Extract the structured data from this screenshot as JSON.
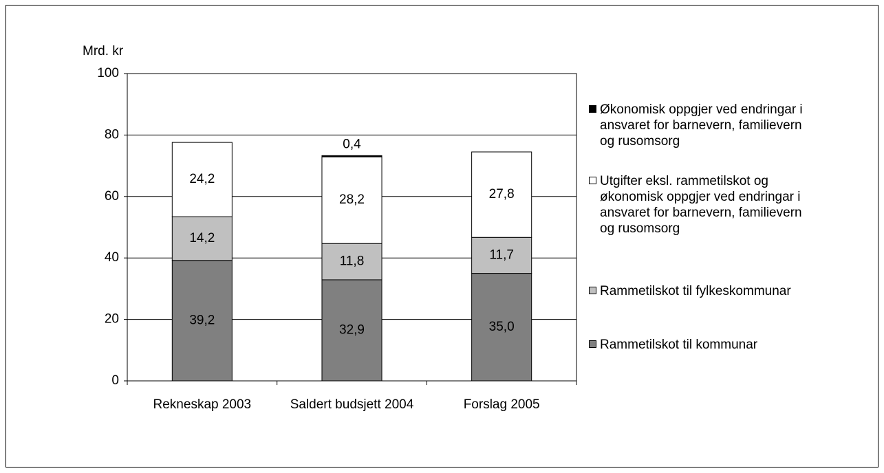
{
  "chart_data": {
    "type": "stacked_bar",
    "y_axis_label": "Mrd. kr",
    "categories": [
      "Rekneskap 2003",
      "Saldert budsjett 2004",
      "Forslag 2005"
    ],
    "series": [
      {
        "name": "Rammetilskot til kommunar",
        "color": "#808080",
        "values": [
          39.2,
          32.9,
          35.0
        ],
        "value_labels": [
          "39,2",
          "32,9",
          "35,0"
        ]
      },
      {
        "name": "Rammetilskot til fylkeskommunar",
        "color": "#c0c0c0",
        "values": [
          14.2,
          11.8,
          11.7
        ],
        "value_labels": [
          "14,2",
          "11,8",
          "11,7"
        ]
      },
      {
        "name": "Utgifter eksl. rammetilskot og økonomisk oppgjer ved endringar i ansvaret for barnevern, familievern og rusomsorg",
        "color": "#ffffff",
        "values": [
          24.2,
          28.2,
          27.8
        ],
        "value_labels": [
          "24,2",
          "28,2",
          "27,8"
        ]
      },
      {
        "name": "Økonomisk oppgjer ved endringar i ansvaret for barnevern, familievern og rusomsorg",
        "color": "#000000",
        "values": [
          null,
          0.4,
          null
        ],
        "value_labels": [
          null,
          "0,4",
          null
        ]
      }
    ],
    "ylim": [
      0,
      100
    ],
    "yticks": [
      0,
      20,
      40,
      60,
      80,
      100
    ],
    "grid": true,
    "legend": "right"
  }
}
